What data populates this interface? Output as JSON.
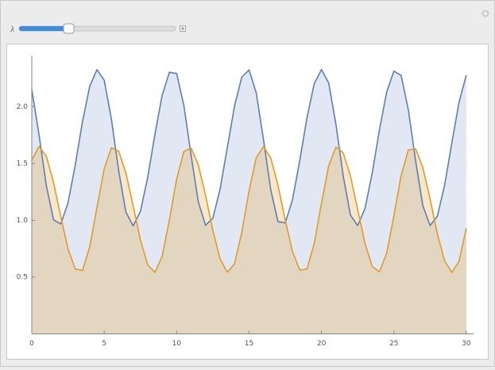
{
  "control_label": "λ",
  "chart_data": {
    "type": "area",
    "x": [
      0,
      0.5,
      1,
      1.5,
      2,
      2.5,
      3,
      3.5,
      4,
      4.5,
      5,
      5.5,
      6,
      6.5,
      7,
      7.5,
      8,
      8.5,
      9,
      9.5,
      10,
      10.5,
      11,
      11.5,
      12,
      12.5,
      13,
      13.5,
      14,
      14.5,
      15,
      15.5,
      16,
      16.5,
      17,
      17.5,
      18,
      18.5,
      19,
      19.5,
      20,
      20.5,
      21,
      21.5,
      22,
      22.5,
      23,
      23.5,
      24,
      24.5,
      25,
      25.5,
      26,
      26.5,
      27,
      27.5,
      28,
      28.5,
      29,
      29.5,
      30
    ],
    "series": [
      {
        "color": "#5b7fb5",
        "fill": "rgba(120,150,200,0.22)",
        "values": [
          2.152,
          1.755,
          1.309,
          1.005,
          0.967,
          1.152,
          1.486,
          1.868,
          2.18,
          2.326,
          2.234,
          1.888,
          1.436,
          1.071,
          0.951,
          1.078,
          1.376,
          1.755,
          2.1,
          2.303,
          2.292,
          2.011,
          1.572,
          1.16,
          0.956,
          1.018,
          1.273,
          1.64,
          2.007,
          2.262,
          2.324,
          2.12,
          1.708,
          1.268,
          0.988,
          0.977,
          1.18,
          1.525,
          1.904,
          2.202,
          2.327,
          2.209,
          1.844,
          1.392,
          1.046,
          0.954,
          1.101,
          1.412,
          1.794,
          2.128,
          2.313,
          2.275,
          1.971,
          1.525,
          1.128,
          0.953,
          1.036,
          1.307,
          1.679,
          2.04,
          2.278
        ]
      },
      {
        "color": "#e09b2a",
        "fill": "rgba(232,160,40,0.25)",
        "values": [
          1.531,
          1.65,
          1.565,
          1.336,
          1.033,
          0.749,
          0.571,
          0.559,
          0.766,
          1.113,
          1.454,
          1.639,
          1.608,
          1.416,
          1.126,
          0.827,
          0.609,
          0.541,
          0.683,
          1.002,
          1.361,
          1.606,
          1.636,
          1.487,
          1.219,
          0.912,
          0.661,
          0.543,
          0.617,
          0.895,
          1.259,
          1.552,
          1.649,
          1.547,
          1.308,
          1.002,
          0.725,
          0.562,
          0.571,
          0.796,
          1.15,
          1.481,
          1.645,
          1.595,
          1.39,
          1.095,
          0.8,
          0.595,
          0.545,
          0.709,
          1.04,
          1.394,
          1.619,
          1.628,
          1.465,
          1.188,
          0.882,
          0.643,
          0.541,
          0.638,
          0.931
        ]
      }
    ],
    "xlim": [
      0,
      30.5
    ],
    "ylim": [
      0,
      2.45
    ],
    "xticks": [
      0,
      5,
      10,
      15,
      20,
      25,
      30
    ],
    "yticks": [
      0.5,
      {
        "value": 1,
        "label": "1.0"
      },
      1.5,
      {
        "value": 2,
        "label": "2.0"
      }
    ]
  }
}
